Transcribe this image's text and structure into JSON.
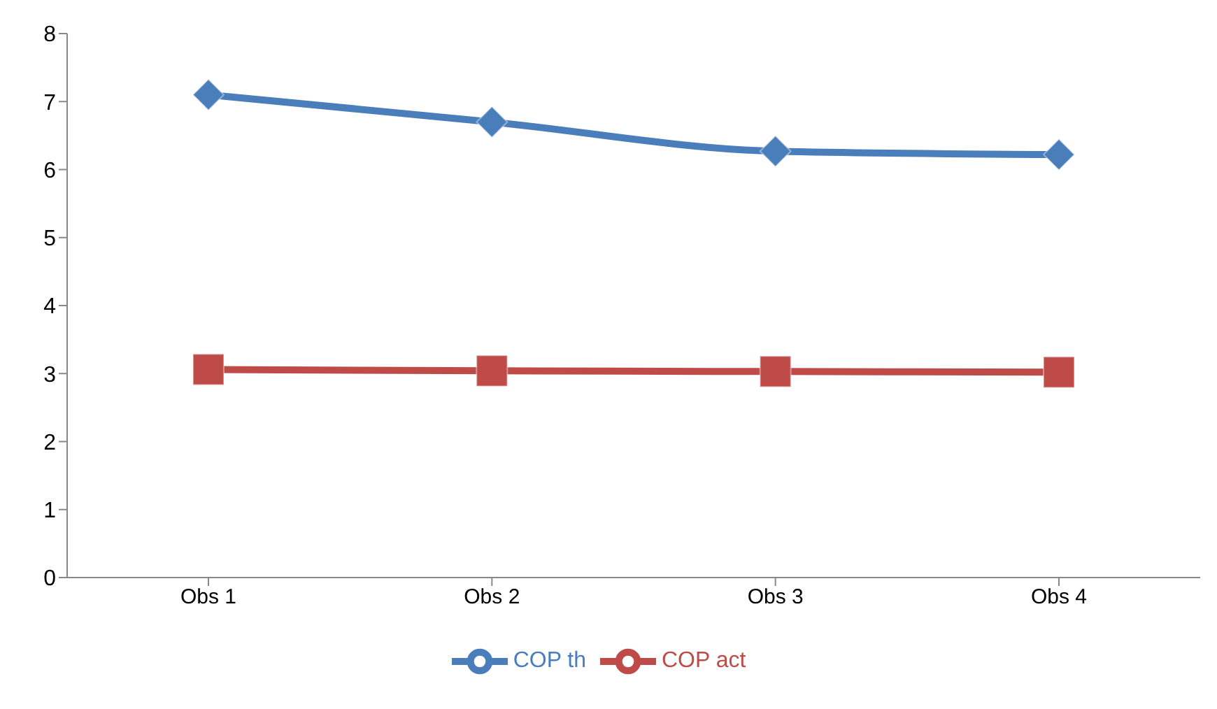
{
  "chart_data": {
    "type": "line",
    "categories": [
      "Obs 1",
      "Obs 2",
      "Obs 3",
      "Obs 4"
    ],
    "series": [
      {
        "name": "COP th",
        "color": "#4a7ebb",
        "values": [
          7.1,
          6.7,
          6.27,
          6.22
        ],
        "marker": "diamond"
      },
      {
        "name": "COP act",
        "color": "#be4b48",
        "values": [
          3.06,
          3.04,
          3.03,
          3.02
        ],
        "marker": "square"
      }
    ],
    "ylim": [
      0,
      8
    ],
    "yticks": [
      0,
      1,
      2,
      3,
      4,
      5,
      6,
      7,
      8
    ],
    "grid": false,
    "legend": "bottom"
  }
}
